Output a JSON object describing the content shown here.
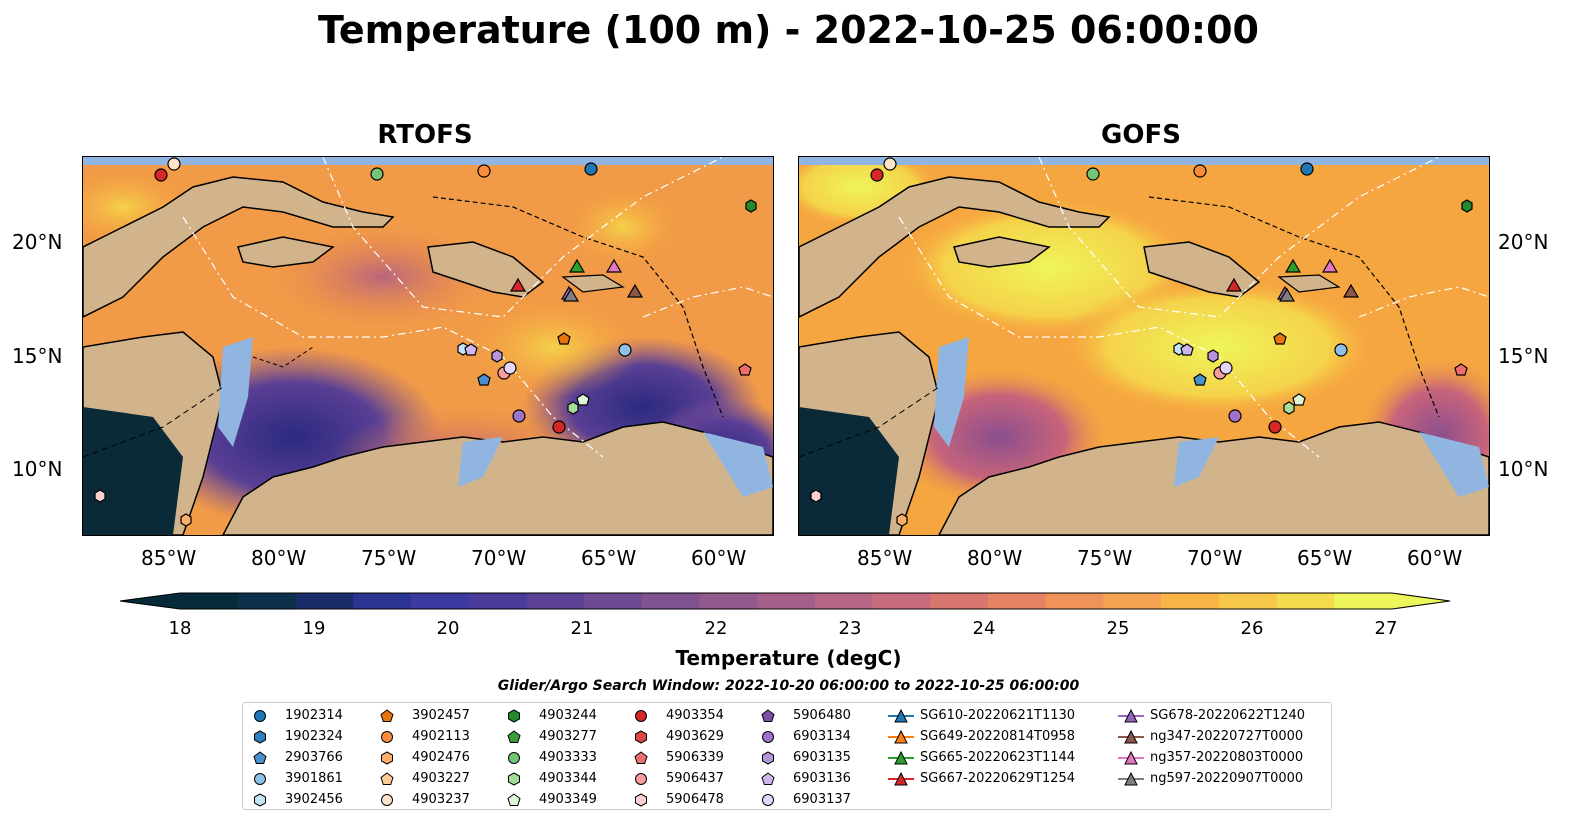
{
  "title": "Temperature (100 m) - 2022-10-25 06:00:00",
  "panels": [
    {
      "title": "RTOFS"
    },
    {
      "title": "GOFS"
    }
  ],
  "axes": {
    "lon_ticks": [
      "85°W",
      "80°W",
      "75°W",
      "70°W",
      "65°W",
      "60°W"
    ],
    "lat_ticks": [
      "20°N",
      "15°N",
      "10°N"
    ]
  },
  "colorbar": {
    "ticks": [
      "18",
      "19",
      "20",
      "21",
      "22",
      "23",
      "24",
      "25",
      "26",
      "27"
    ],
    "label": "Temperature (degC)",
    "colors": [
      "#062a3a",
      "#0c2f4a",
      "#1a2c6a",
      "#2b3490",
      "#3b3aa0",
      "#4a3b9a",
      "#5b4096",
      "#6e4a92",
      "#7f5390",
      "#91598c",
      "#a46089",
      "#b76686",
      "#c86c7d",
      "#d77770",
      "#e58364",
      "#f0935a",
      "#f5a350",
      "#f8b447",
      "#f8c84a",
      "#f5dc4f",
      "#eef55a"
    ]
  },
  "search_window": "Glider/Argo Search Window: 2022-10-20 06:00:00 to 2022-10-25 06:00:00",
  "legend": {
    "columns": [
      [
        {
          "label": "1902314",
          "marker": "circle",
          "color": "#1f77b4"
        },
        {
          "label": "1902324",
          "marker": "hexagon",
          "color": "#2d7fbf"
        },
        {
          "label": "2903766",
          "marker": "pentagon",
          "color": "#4a90cc"
        },
        {
          "label": "3901861",
          "marker": "circle",
          "color": "#8fc0e6"
        },
        {
          "label": "3902456",
          "marker": "hexagon",
          "color": "#c6e2f7"
        }
      ],
      [
        {
          "label": "3902457",
          "marker": "pentagon",
          "color": "#e8750c"
        },
        {
          "label": "4902113",
          "marker": "circle",
          "color": "#fb8c3a"
        },
        {
          "label": "4902476",
          "marker": "hexagon",
          "color": "#fdae6b"
        },
        {
          "label": "4903227",
          "marker": "pentagon",
          "color": "#fdcc96"
        },
        {
          "label": "4903237",
          "marker": "circle",
          "color": "#fde4c8"
        }
      ],
      [
        {
          "label": "4903244",
          "marker": "hexagon",
          "color": "#238b2c"
        },
        {
          "label": "4903277",
          "marker": "pentagon",
          "color": "#3a9e3a"
        },
        {
          "label": "4903333",
          "marker": "circle",
          "color": "#74c476"
        },
        {
          "label": "4903344",
          "marker": "hexagon",
          "color": "#a6dc99"
        },
        {
          "label": "4903349",
          "marker": "pentagon",
          "color": "#dff5d4"
        }
      ],
      [
        {
          "label": "4903354",
          "marker": "circle",
          "color": "#d62728"
        },
        {
          "label": "4903629",
          "marker": "hexagon",
          "color": "#de4747"
        },
        {
          "label": "5906339",
          "marker": "pentagon",
          "color": "#ef6f6f"
        },
        {
          "label": "5906437",
          "marker": "circle",
          "color": "#fa9d9d"
        },
        {
          "label": "5906478",
          "marker": "hexagon",
          "color": "#fcd0d0"
        }
      ],
      [
        {
          "label": "5906480",
          "marker": "pentagon",
          "color": "#7b4fa8"
        },
        {
          "label": "6903134",
          "marker": "circle",
          "color": "#9e72c8"
        },
        {
          "label": "6903135",
          "marker": "hexagon",
          "color": "#b794dc"
        },
        {
          "label": "6903136",
          "marker": "pentagon",
          "color": "#d0b6ee"
        },
        {
          "label": "6903137",
          "marker": "circle",
          "color": "#e6d5fa"
        }
      ],
      [
        {
          "label": "SG610-20220621T1130",
          "marker": "triangle",
          "color": "#1f77b4"
        },
        {
          "label": "SG649-20220814T0958",
          "marker": "triangle",
          "color": "#ff7f0e"
        },
        {
          "label": "SG665-20220623T1144",
          "marker": "triangle",
          "color": "#2ca02c"
        },
        {
          "label": "SG667-20220629T1254",
          "marker": "triangle",
          "color": "#d62728"
        }
      ],
      [
        {
          "label": "SG678-20220622T1240",
          "marker": "triangle",
          "color": "#9467bd"
        },
        {
          "label": "ng347-20220727T0000",
          "marker": "triangle",
          "color": "#8c564b"
        },
        {
          "label": "ng357-20220803T0000",
          "marker": "triangle",
          "color": "#e377c2"
        },
        {
          "label": "ng597-20220907T0000",
          "marker": "triangle",
          "color": "#7f7f7f"
        }
      ]
    ]
  }
}
